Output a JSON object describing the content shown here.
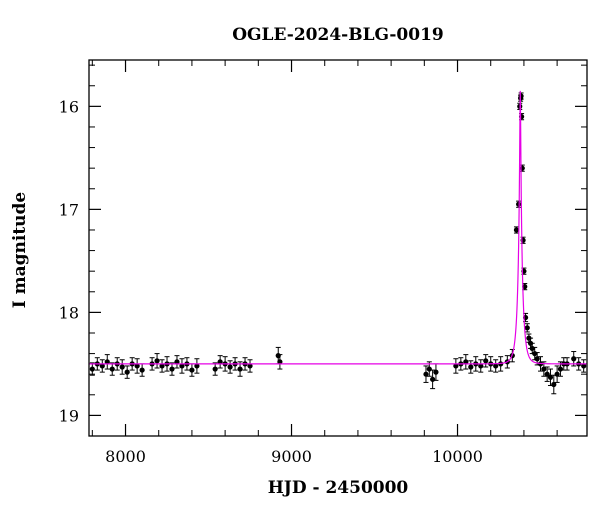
{
  "chart_data": {
    "type": "scatter",
    "title": "OGLE-2024-BLG-0019",
    "xlabel": "HJD - 2450000",
    "ylabel": "I magnitude",
    "xlim": [
      7780,
      10780
    ],
    "ylim": [
      19.2,
      15.55
    ],
    "y_inverted": true,
    "x_ticks": [
      8000,
      9000,
      10000
    ],
    "y_ticks": [
      16,
      17,
      18,
      19
    ],
    "x_minor_step": 200,
    "y_minor_step": 0.2,
    "grid": false,
    "legend": "none",
    "colors": {
      "points": "#000000",
      "model": "#e600e6",
      "frame": "#000000"
    },
    "series": [
      {
        "kind": "observations",
        "x": [
          7800,
          7830,
          7860,
          7890,
          7920,
          7950,
          7980,
          8010,
          8040,
          8070,
          8100,
          8160,
          8190,
          8220,
          8250,
          8280,
          8310,
          8340,
          8370,
          8400,
          8430,
          8540,
          8570,
          8600,
          8630,
          8660,
          8690,
          8720,
          8750,
          8920,
          8930,
          9810,
          9830,
          9850,
          9870,
          9990,
          10020,
          10050,
          10080,
          10110,
          10140,
          10170,
          10200,
          10230,
          10260,
          10300,
          10330,
          10355,
          10368,
          10375,
          10380,
          10383,
          10386,
          10390,
          10395,
          10400,
          10405,
          10410,
          10420,
          10430,
          10440,
          10450,
          10465,
          10480,
          10500,
          10520,
          10540,
          10560,
          10580,
          10600,
          10620,
          10640,
          10660,
          10700,
          10730,
          10760
        ],
        "y": [
          18.55,
          18.5,
          18.52,
          18.48,
          18.55,
          18.5,
          18.53,
          18.58,
          18.5,
          18.52,
          18.56,
          18.5,
          18.47,
          18.52,
          18.5,
          18.55,
          18.48,
          18.52,
          18.5,
          18.56,
          18.52,
          18.55,
          18.48,
          18.5,
          18.53,
          18.5,
          18.55,
          18.5,
          18.52,
          18.42,
          18.48,
          18.6,
          18.55,
          18.65,
          18.58,
          18.52,
          18.5,
          18.48,
          18.53,
          18.5,
          18.52,
          18.47,
          18.5,
          18.52,
          18.5,
          18.48,
          18.42,
          17.2,
          16.95,
          16.0,
          15.92,
          15.9,
          16.1,
          16.6,
          17.3,
          17.6,
          17.75,
          18.05,
          18.15,
          18.25,
          18.3,
          18.35,
          18.4,
          18.45,
          18.5,
          18.55,
          18.6,
          18.63,
          18.7,
          18.6,
          18.55,
          18.5,
          18.5,
          18.45,
          18.5,
          18.52
        ],
        "error": [
          0.06,
          0.06,
          0.06,
          0.07,
          0.06,
          0.06,
          0.07,
          0.06,
          0.06,
          0.07,
          0.06,
          0.06,
          0.07,
          0.06,
          0.07,
          0.06,
          0.06,
          0.07,
          0.06,
          0.06,
          0.07,
          0.06,
          0.06,
          0.07,
          0.06,
          0.06,
          0.07,
          0.06,
          0.06,
          0.08,
          0.07,
          0.08,
          0.07,
          0.09,
          0.08,
          0.07,
          0.06,
          0.07,
          0.06,
          0.07,
          0.06,
          0.06,
          0.07,
          0.06,
          0.07,
          0.06,
          0.06,
          0.03,
          0.03,
          0.03,
          0.03,
          0.03,
          0.03,
          0.03,
          0.03,
          0.03,
          0.03,
          0.04,
          0.04,
          0.04,
          0.05,
          0.05,
          0.06,
          0.06,
          0.07,
          0.07,
          0.07,
          0.08,
          0.09,
          0.08,
          0.07,
          0.06,
          0.06,
          0.07,
          0.06,
          0.06
        ]
      },
      {
        "kind": "model",
        "baseline": 18.5,
        "peak_mag": 15.85,
        "t0": 10378,
        "tE": 27,
        "u0": 0.095
      }
    ]
  }
}
